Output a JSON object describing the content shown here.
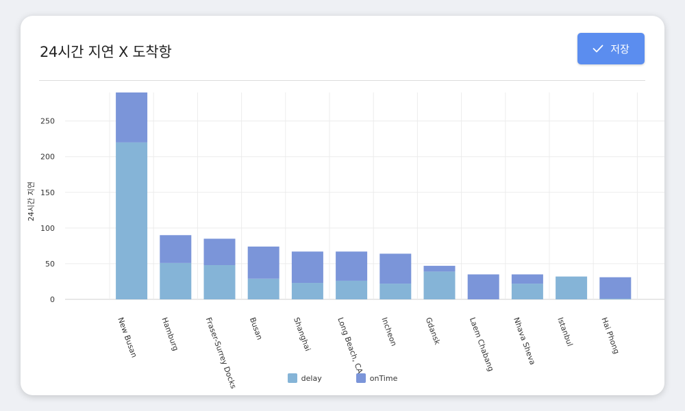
{
  "header": {
    "title": "24시간 지연 X 도착항",
    "save_label": "저장"
  },
  "colors": {
    "delay": "#85b4d7",
    "onTime": "#7b95d9",
    "button": "#5b8def"
  },
  "chart_data": {
    "type": "bar",
    "stacked": true,
    "ylabel": "24시간 지연",
    "xlabel": "",
    "ylim": [
      0,
      290
    ],
    "yticks": [
      0,
      50,
      100,
      150,
      200,
      250
    ],
    "categories": [
      "New Busan",
      "Hamburg",
      "Fraser-Surrey Docks",
      "Busan",
      "Shanghai",
      "Long Beach, CA",
      "Incheon",
      "Gdansk",
      "Laem Chabang",
      "Nhava Sheva",
      "Istanbul",
      "Hai Phong"
    ],
    "series": [
      {
        "name": "delay",
        "values": [
          220,
          51,
          48,
          29,
          23,
          26,
          22,
          39,
          0,
          22,
          32,
          1
        ]
      },
      {
        "name": "onTime",
        "values": [
          70,
          39,
          37,
          45,
          44,
          41,
          42,
          8,
          35,
          13,
          0,
          30
        ]
      }
    ],
    "legend": "bottom-center",
    "grid": true
  }
}
